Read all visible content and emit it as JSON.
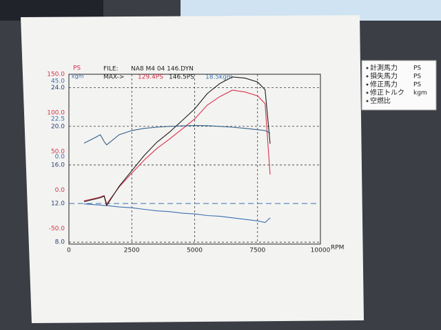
{
  "chart_data": {
    "type": "line",
    "header": {
      "y_unit": "PS",
      "y2_unit": "kgm",
      "file_label": "FILE:",
      "file": "NA8 M4 04 146.DYN",
      "max_label": "MAX->",
      "max_values": [
        "129.4PS",
        "146.5PS",
        "18.5kgm"
      ]
    },
    "xlabel": "RPM",
    "x": [
      600,
      1000,
      1250,
      1400,
      1500,
      2000,
      2500,
      3000,
      3500,
      4000,
      4500,
      5000,
      5500,
      6000,
      6500,
      7000,
      7500,
      7800,
      8000
    ],
    "series": [
      {
        "name": "計測馬力",
        "unit": "PS",
        "color": "#d8304a",
        "axis": "y",
        "values": [
          -14,
          -11,
          -9,
          -7,
          -18,
          4,
          22,
          39,
          54,
          66,
          79,
          92,
          110,
          121,
          129.4,
          127,
          122,
          112,
          20
        ]
      },
      {
        "name": "損失馬力",
        "unit": "PS",
        "color": "#3a6fb0",
        "axis": "y",
        "values": [
          -18,
          -19,
          -19.5,
          -20,
          -20,
          -22,
          -23,
          -25,
          -27,
          -28,
          -30,
          -31,
          -33,
          -34,
          -36,
          -38,
          -40,
          -42,
          -36
        ]
      },
      {
        "name": "修正馬力",
        "unit": "PS",
        "color": "#1a1a1a",
        "axis": "y",
        "values": [
          -15,
          -12,
          -10,
          -8,
          -20,
          5,
          25,
          45,
          62,
          75,
          90,
          105,
          125,
          138,
          146.5,
          145,
          140,
          130,
          60
        ]
      },
      {
        "name": "修正トルク",
        "unit": "kgm",
        "color": "#2f5f8a",
        "axis": "y2",
        "values": [
          8,
          11,
          13,
          9,
          7,
          13,
          15.5,
          16.8,
          17.5,
          18,
          18.3,
          18.5,
          18.4,
          18,
          17.5,
          16.8,
          16,
          15.5,
          14
        ]
      }
    ],
    "legend_extra": [
      "空燃比"
    ],
    "xlim": [
      0,
      10000
    ],
    "xticks": [
      0,
      2500,
      5000,
      7500,
      10000
    ],
    "ylim": [
      -70,
      150
    ],
    "yticks": [
      {
        "value": 150,
        "label": "150.0"
      },
      {
        "value": 100,
        "label": "100.0"
      },
      {
        "value": 50,
        "label": "50.0"
      },
      {
        "value": 0,
        "label": "0.0"
      },
      {
        "value": -50,
        "label": "-50.0"
      }
    ],
    "y2lim": [
      -52,
      49
    ],
    "y2ticks": [
      {
        "value": 45,
        "label": "45.0"
      },
      {
        "value": 22.5,
        "label": "22.5"
      },
      {
        "value": 0,
        "label": "0.0"
      }
    ],
    "y3lim": [
      7.8,
      25.4
    ],
    "y3ticks": [
      {
        "value": 24,
        "label": "24.0"
      },
      {
        "value": 20,
        "label": "20.0"
      },
      {
        "value": 16,
        "label": "16.0"
      },
      {
        "value": 12,
        "label": "12.0"
      },
      {
        "value": 8,
        "label": "8.0"
      }
    ],
    "reference_tick": 3
  }
}
